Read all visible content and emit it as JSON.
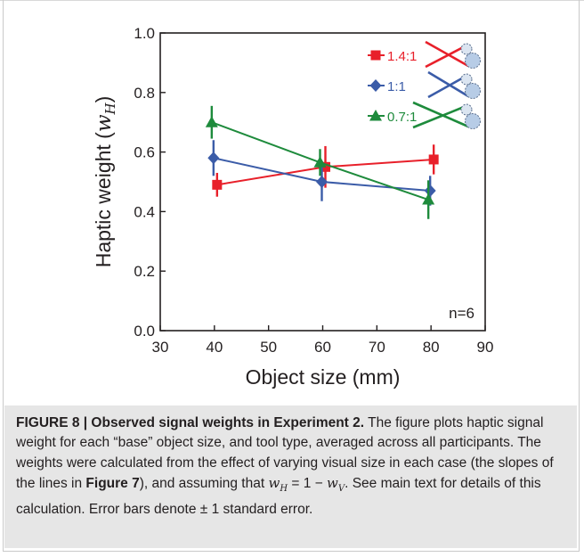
{
  "chart_data": {
    "type": "line",
    "xlabel": "Object size (mm)",
    "ylabel": "Haptic weight (",
    "ylabel_symbol": "w",
    "ylabel_subscript": "H",
    "ylabel_close": ")",
    "xlim": [
      30,
      90
    ],
    "ylim": [
      0.0,
      1.0
    ],
    "xticks": [
      "30",
      "40",
      "50",
      "60",
      "70",
      "80",
      "90"
    ],
    "yticks": [
      "0.0",
      "0.2",
      "0.4",
      "0.6",
      "0.8",
      "1.0"
    ],
    "x": [
      40,
      60,
      80
    ],
    "annotation": "n=6",
    "grid": false,
    "legend_position": "top-right",
    "series": [
      {
        "name": "1.4:1",
        "color": "#e8202a",
        "marker": "square",
        "values": [
          0.49,
          0.55,
          0.575
        ],
        "errors": [
          0.04,
          0.07,
          0.05
        ]
      },
      {
        "name": "1:1",
        "color": "#3b5ca8",
        "marker": "diamond",
        "values": [
          0.58,
          0.5,
          0.47
        ],
        "errors": [
          0.06,
          0.065,
          0.05
        ]
      },
      {
        "name": "0.7:1",
        "color": "#1e8b3c",
        "marker": "triangle",
        "values": [
          0.7,
          0.565,
          0.44
        ],
        "errors": [
          0.055,
          0.045,
          0.065
        ]
      }
    ]
  },
  "caption": {
    "label": "FIGURE 8 | Observed signal weights in Experiment 2.",
    "text1": " The figure plots haptic signal weight for each “base” object size, and tool type, averaged across all participants. The weights were calculated from the effect of varying visual size in each case (the slopes of the lines in ",
    "figref": "Figure 7",
    "text2": "), and assuming that ",
    "eq_lhs": "w",
    "eq_lhs_sub": "H",
    "eq_mid": " = 1 − ",
    "eq_rhs": "w",
    "eq_rhs_sub": "V",
    "text3": ". See main text for details of this calculation. Error bars denote ± 1 standard error."
  }
}
